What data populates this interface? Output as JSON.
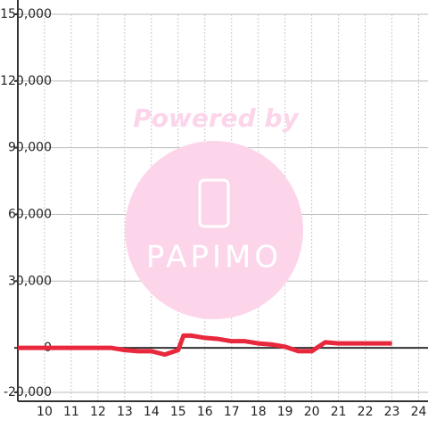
{
  "chart_data": {
    "type": "line",
    "x": [
      9,
      10,
      11,
      12,
      12.5,
      13,
      13.5,
      14,
      14.5,
      15,
      15.2,
      15.5,
      16,
      16.5,
      17,
      17.5,
      18,
      18.5,
      19,
      19.5,
      20,
      20.5,
      21,
      22,
      23
    ],
    "series": [
      {
        "color": "#e8283c",
        "values": [
          0,
          0,
          0,
          0,
          0,
          -1000,
          -1500,
          -1500,
          -3000,
          -1000,
          5500,
          5500,
          4500,
          4000,
          3000,
          3000,
          2000,
          1500,
          500,
          -1500,
          -1500,
          2500,
          2000,
          2000,
          2000
        ]
      }
    ],
    "xlim": [
      9,
      24.35
    ],
    "xticks": [
      10,
      11,
      12,
      13,
      14,
      15,
      16,
      17,
      18,
      19,
      20,
      21,
      22,
      23,
      24
    ],
    "ylim": [
      -24000,
      150000
    ],
    "yticks": [
      {
        "value": -20000,
        "label": "-20,000"
      },
      0,
      {
        "value": 30000,
        "label": "30,000"
      },
      {
        "value": 60000,
        "label": "60,000"
      },
      {
        "value": 90000,
        "label": "90,000"
      },
      {
        "value": 120000,
        "label": "120,000"
      },
      {
        "value": 150000,
        "label": "150,000"
      }
    ],
    "grid": true,
    "watermark": {
      "text": "Powered by",
      "logo": "PAPIMO"
    }
  }
}
